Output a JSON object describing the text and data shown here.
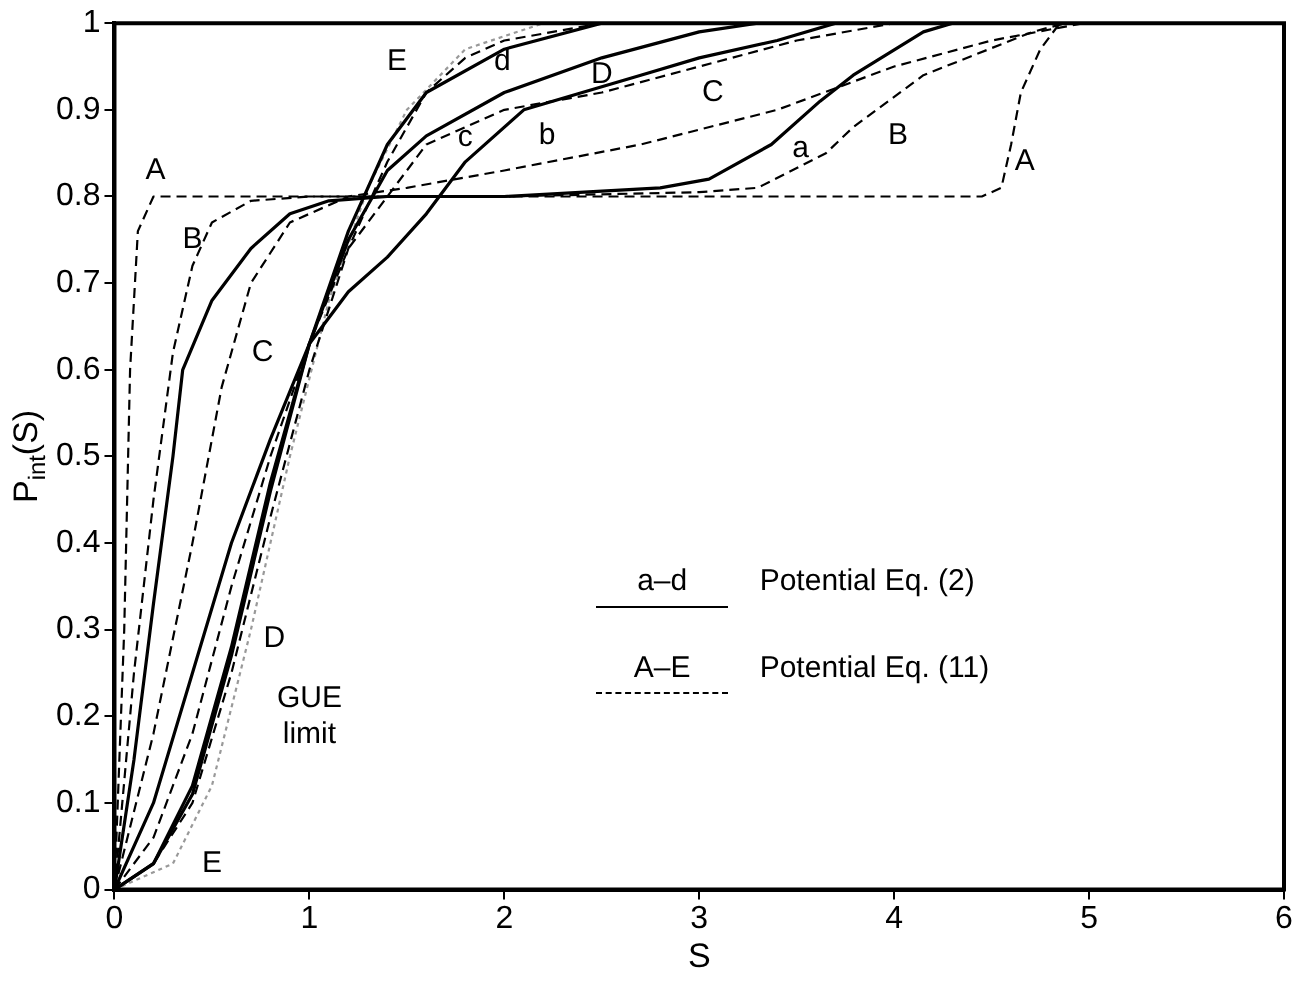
{
  "chart_data": {
    "type": "line",
    "xlabel": "S",
    "ylabel": "P$_{int}$(S)",
    "xlim": [
      0,
      6
    ],
    "xticks": [
      0,
      1,
      2,
      3,
      4,
      5,
      6
    ],
    "ylim": [
      0,
      1
    ],
    "yticks": [
      0,
      0.1,
      0.2,
      0.3,
      0.4,
      0.5,
      0.6,
      0.7,
      0.8,
      0.9,
      1
    ],
    "grid": false,
    "marker": "none",
    "series": [
      {
        "color": "#000000",
        "line_style": "solid",
        "x": [
          0,
          0.1,
          0.2,
          0.3,
          0.35,
          0.5,
          0.7,
          0.9,
          1.1,
          1.4,
          2,
          2.8,
          3.05,
          3.37,
          3.62,
          3.79,
          4.15,
          4.3
        ],
        "values": [
          0,
          0.15,
          0.33,
          0.5,
          0.6,
          0.68,
          0.74,
          0.78,
          0.795,
          0.8,
          0.8,
          0.81,
          0.82,
          0.86,
          0.91,
          0.94,
          0.99,
          1
        ]
      },
      {
        "color": "#000000",
        "line_style": "solid",
        "x": [
          0,
          0.2,
          0.4,
          0.6,
          0.8,
          1.0,
          1.2,
          1.4,
          1.6,
          1.8,
          2.1,
          2.7,
          3.0,
          3.4,
          3.7
        ],
        "values": [
          0,
          0.1,
          0.25,
          0.4,
          0.52,
          0.63,
          0.69,
          0.73,
          0.78,
          0.84,
          0.9,
          0.94,
          0.96,
          0.98,
          1
        ]
      },
      {
        "color": "#000000",
        "line_style": "solid",
        "x": [
          0,
          0.2,
          0.4,
          0.6,
          0.8,
          1.0,
          1.2,
          1.4,
          1.6,
          2.0,
          2.5,
          3.0,
          3.3
        ],
        "values": [
          0,
          0.03,
          0.12,
          0.28,
          0.47,
          0.63,
          0.75,
          0.83,
          0.87,
          0.92,
          0.96,
          0.99,
          1
        ]
      },
      {
        "color": "#000000",
        "line_style": "solid",
        "x": [
          0,
          0.2,
          0.4,
          0.6,
          0.8,
          1.0,
          1.2,
          1.4,
          1.6,
          2.0,
          2.5
        ],
        "values": [
          0,
          0.03,
          0.11,
          0.27,
          0.46,
          0.63,
          0.76,
          0.86,
          0.92,
          0.97,
          1
        ]
      },
      {
        "color": "#000000",
        "line_style": "dashed",
        "x": [
          0,
          0.05,
          0.08,
          0.12,
          0.2,
          4.3,
          4.45,
          4.55,
          4.6,
          4.65,
          4.75,
          4.85
        ],
        "values": [
          0,
          0.3,
          0.6,
          0.76,
          0.8,
          0.8,
          0.8,
          0.81,
          0.86,
          0.92,
          0.97,
          1
        ]
      },
      {
        "color": "#000000",
        "line_style": "dashed",
        "x": [
          0,
          0.1,
          0.2,
          0.3,
          0.4,
          0.5,
          0.7,
          1.0,
          2.0,
          3.0,
          3.3,
          3.65,
          3.79,
          4.15,
          4.71,
          4.88
        ],
        "values": [
          0,
          0.25,
          0.45,
          0.62,
          0.72,
          0.77,
          0.795,
          0.8,
          0.8,
          0.805,
          0.81,
          0.85,
          0.88,
          0.94,
          0.99,
          1
        ]
      },
      {
        "color": "#000000",
        "line_style": "dashed",
        "x": [
          0,
          0.2,
          0.4,
          0.55,
          0.7,
          0.9,
          1.2,
          1.5,
          2.0,
          2.7,
          3.4,
          4.0,
          4.5,
          4.97
        ],
        "values": [
          0,
          0.18,
          0.4,
          0.58,
          0.7,
          0.77,
          0.8,
          0.81,
          0.83,
          0.86,
          0.9,
          0.95,
          0.98,
          1
        ]
      },
      {
        "color": "#000000",
        "line_style": "dashed",
        "x": [
          0,
          0.2,
          0.4,
          0.6,
          0.8,
          1.0,
          1.2,
          1.4,
          1.6,
          2.0,
          2.5,
          3.0,
          3.5,
          4.0
        ],
        "values": [
          0,
          0.06,
          0.18,
          0.35,
          0.5,
          0.63,
          0.74,
          0.8,
          0.86,
          0.9,
          0.92,
          0.95,
          0.98,
          1
        ]
      },
      {
        "color": "#000000",
        "line_style": "dashed",
        "x": [
          0,
          0.2,
          0.4,
          0.6,
          0.8,
          1.0,
          1.2,
          1.4,
          1.6,
          1.8,
          2.0,
          2.5
        ],
        "values": [
          0,
          0.03,
          0.1,
          0.25,
          0.43,
          0.6,
          0.74,
          0.84,
          0.92,
          0.96,
          0.98,
          1
        ]
      },
      {
        "color": "#999999",
        "line_style": "dotted",
        "x": [
          0,
          0.3,
          0.5,
          0.7,
          0.9,
          1.1,
          1.3,
          1.5,
          1.8,
          2.2
        ],
        "values": [
          0,
          0.03,
          0.12,
          0.3,
          0.5,
          0.68,
          0.81,
          0.9,
          0.97,
          1
        ]
      }
    ],
    "annotations": [
      "A",
      "B",
      "C",
      "D",
      "E",
      "E",
      "d",
      "D",
      "c",
      "b",
      "C",
      "a",
      "B",
      "A",
      "GUE limit",
      "a–d",
      "Potential Eq. (2)",
      "A–E",
      "Potential Eq. (11)"
    ]
  }
}
